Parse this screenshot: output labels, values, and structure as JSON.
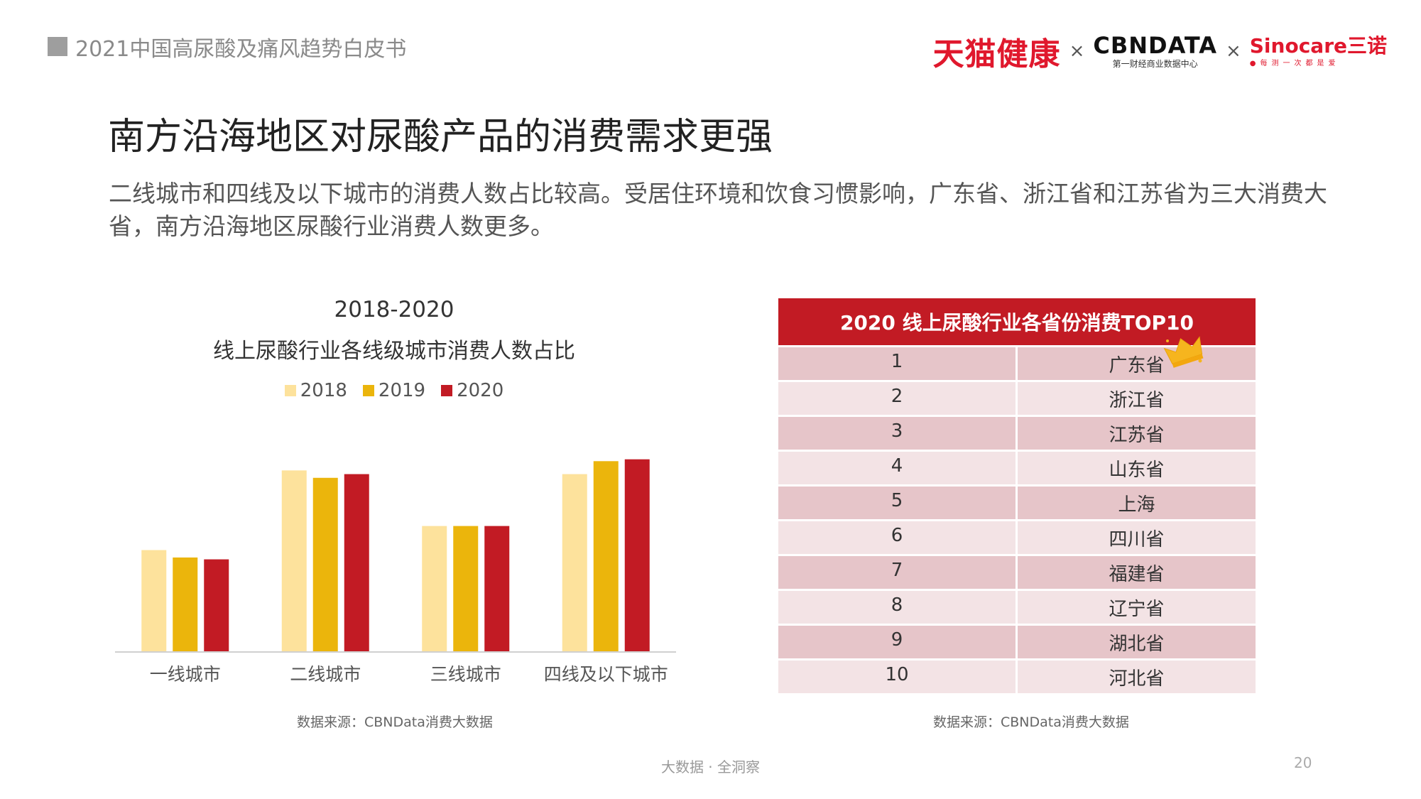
{
  "header": {
    "report_title": "2021中国高尿酸及痛风趋势白皮书"
  },
  "logos": {
    "tmall": "天猫健康",
    "cross": "×",
    "cbn_main": "CBNDATA",
    "cbn_sub": "第一财经商业数据中心",
    "sino_main": "Sinocare三诺",
    "sino_sub": "●每测一次都是爱"
  },
  "headline": "南方沿海地区对尿酸产品的消费需求更强",
  "subtitle": "二线城市和四线及以下城市的消费人数占比较高。受居住环境和饮食习惯影响，广东省、浙江省和江苏省为三大消费大省，南方沿海地区尿酸行业消费人数更多。",
  "chart_data": {
    "type": "bar",
    "title": "2018-2020",
    "subtitle": "线上尿酸行业各线级城市消费人数占比",
    "categories": [
      "一线城市",
      "二线城市",
      "三线城市",
      "四线及以下城市"
    ],
    "series": [
      {
        "name": "2018",
        "color": "#fde29c",
        "values": [
          0.55,
          0.98,
          0.68,
          0.96
        ]
      },
      {
        "name": "2019",
        "color": "#ebb50c",
        "values": [
          0.51,
          0.94,
          0.68,
          1.03
        ]
      },
      {
        "name": "2020",
        "color": "#c21b24",
        "values": [
          0.5,
          0.96,
          0.68,
          1.04
        ]
      }
    ],
    "ylim": [
      0,
      1.15
    ],
    "grid": false,
    "legend": "top",
    "source": "数据来源：CBNData消费大数据"
  },
  "table": {
    "title": "2020 线上尿酸行业各省份消费TOP10",
    "rows": [
      {
        "rank": "1",
        "province": "广东省"
      },
      {
        "rank": "2",
        "province": "浙江省"
      },
      {
        "rank": "3",
        "province": "江苏省"
      },
      {
        "rank": "4",
        "province": "山东省"
      },
      {
        "rank": "5",
        "province": "上海"
      },
      {
        "rank": "6",
        "province": "四川省"
      },
      {
        "rank": "7",
        "province": "福建省"
      },
      {
        "rank": "8",
        "province": "辽宁省"
      },
      {
        "rank": "9",
        "province": "湖北省"
      },
      {
        "rank": "10",
        "province": "河北省"
      }
    ],
    "source": "数据来源：CBNData消费大数据",
    "crown_icon": "crown-icon"
  },
  "footer": {
    "tagline": "大数据 · 全洞察",
    "page_number": "20"
  }
}
